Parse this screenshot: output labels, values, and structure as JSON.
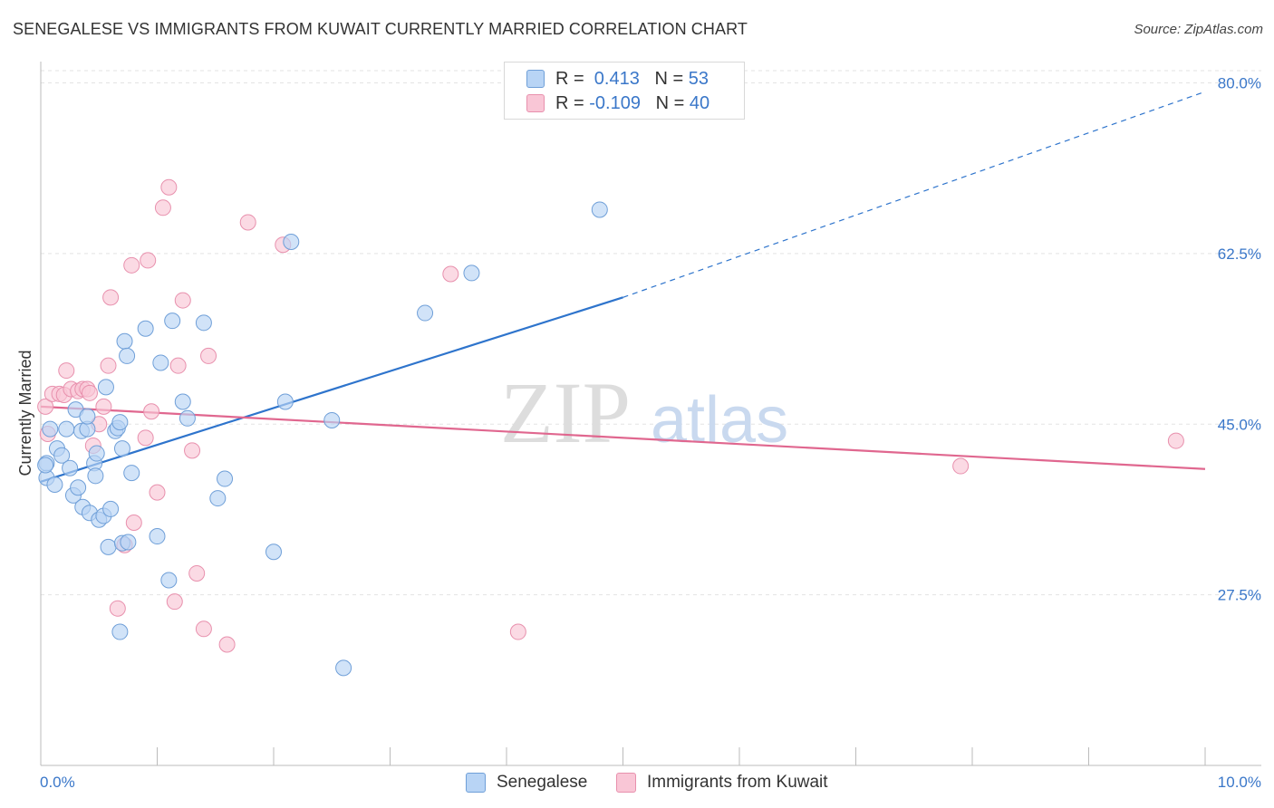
{
  "title": "SENEGALESE VS IMMIGRANTS FROM KUWAIT CURRENTLY MARRIED CORRELATION CHART",
  "source": "Source: ZipAtlas.com",
  "watermark": {
    "zip": "ZIP",
    "atlas": "atlas"
  },
  "legend": {
    "rows": [
      {
        "r_label": "R = ",
        "r_value": " 0.413",
        "n_label": "N = ",
        "n_value": "53"
      },
      {
        "r_label": "R = ",
        "r_value": "-0.109",
        "n_label": "N = ",
        "n_value": "40"
      }
    ]
  },
  "series_labels": {
    "senegalese": "Senegalese",
    "kuwait": "Immigrants from Kuwait"
  },
  "colors": {
    "blue_fill": "#b8d4f5",
    "blue_stroke": "#6f9fd8",
    "blue_line": "#2e74cc",
    "pink_fill": "#f9c6d6",
    "pink_stroke": "#e890ad",
    "pink_line": "#e0678f",
    "axis_text": "#3a77c9",
    "grid": "#e3e3e3"
  },
  "chart_data": {
    "type": "scatter",
    "title": "SENEGALESE VS IMMIGRANTS FROM KUWAIT CURRENTLY MARRIED CORRELATION CHART",
    "xlabel": "",
    "ylabel": "Currently Married",
    "xlim": [
      0,
      10
    ],
    "ylim": [
      10,
      82
    ],
    "x_tick_labels": [
      "0.0%",
      "10.0%"
    ],
    "y_ticks": [
      27.5,
      45.0,
      62.5,
      80.0
    ],
    "y_tick_labels": [
      "27.5%",
      "45.0%",
      "62.5%",
      "80.0%"
    ],
    "grid": true,
    "series": [
      {
        "name": "Senegalese",
        "R": 0.413,
        "N": 53,
        "trend": {
          "x0": 0,
          "y0": 39.1,
          "x1": 5.0,
          "y1": 58.0,
          "dash_x1": 10,
          "dash_y1": 79.1
        },
        "points": [
          [
            0.05,
            39.5
          ],
          [
            0.05,
            41.0
          ],
          [
            0.08,
            44.5
          ],
          [
            0.12,
            38.8
          ],
          [
            0.14,
            42.5
          ],
          [
            0.18,
            41.8
          ],
          [
            0.22,
            44.5
          ],
          [
            0.25,
            40.5
          ],
          [
            0.28,
            37.7
          ],
          [
            0.3,
            46.5
          ],
          [
            0.32,
            38.5
          ],
          [
            0.35,
            44.3
          ],
          [
            0.36,
            36.5
          ],
          [
            0.4,
            44.5
          ],
          [
            0.4,
            45.8
          ],
          [
            0.42,
            35.9
          ],
          [
            0.46,
            41.0
          ],
          [
            0.47,
            39.7
          ],
          [
            0.48,
            42.0
          ],
          [
            0.5,
            35.2
          ],
          [
            0.54,
            35.6
          ],
          [
            0.56,
            48.8
          ],
          [
            0.58,
            32.4
          ],
          [
            0.6,
            36.3
          ],
          [
            0.64,
            44.3
          ],
          [
            0.66,
            44.6
          ],
          [
            0.68,
            45.2
          ],
          [
            0.7,
            42.5
          ],
          [
            0.7,
            32.8
          ],
          [
            0.72,
            53.5
          ],
          [
            0.74,
            52.0
          ],
          [
            0.75,
            32.9
          ],
          [
            0.78,
            40.0
          ],
          [
            0.9,
            54.8
          ],
          [
            1.0,
            33.5
          ],
          [
            1.03,
            51.3
          ],
          [
            1.1,
            29.0
          ],
          [
            1.13,
            55.6
          ],
          [
            1.22,
            47.3
          ],
          [
            1.26,
            45.6
          ],
          [
            1.4,
            55.4
          ],
          [
            1.52,
            37.4
          ],
          [
            1.58,
            39.4
          ],
          [
            2.0,
            31.9
          ],
          [
            2.1,
            47.3
          ],
          [
            2.15,
            63.7
          ],
          [
            2.5,
            45.4
          ],
          [
            2.6,
            20.0
          ],
          [
            3.3,
            56.4
          ],
          [
            3.7,
            60.5
          ],
          [
            4.8,
            67.0
          ],
          [
            0.68,
            23.7
          ],
          [
            0.04,
            40.8
          ]
        ]
      },
      {
        "name": "Immigrants from Kuwait",
        "R": -0.109,
        "N": 40,
        "trend": {
          "x0": 0,
          "y0": 46.8,
          "x1": 10,
          "y1": 40.4
        },
        "points": [
          [
            0.04,
            46.8
          ],
          [
            0.06,
            44.0
          ],
          [
            0.1,
            48.1
          ],
          [
            0.16,
            48.1
          ],
          [
            0.2,
            48.0
          ],
          [
            0.22,
            50.5
          ],
          [
            0.26,
            48.6
          ],
          [
            0.32,
            48.4
          ],
          [
            0.36,
            48.6
          ],
          [
            0.4,
            48.6
          ],
          [
            0.42,
            48.2
          ],
          [
            0.45,
            42.8
          ],
          [
            0.5,
            45.0
          ],
          [
            0.54,
            46.8
          ],
          [
            0.58,
            51.0
          ],
          [
            0.6,
            58.0
          ],
          [
            0.66,
            26.1
          ],
          [
            0.72,
            32.6
          ],
          [
            0.78,
            61.3
          ],
          [
            0.8,
            34.9
          ],
          [
            0.9,
            43.6
          ],
          [
            0.92,
            61.8
          ],
          [
            0.95,
            46.3
          ],
          [
            1.0,
            38.0
          ],
          [
            1.05,
            67.2
          ],
          [
            1.1,
            69.3
          ],
          [
            1.15,
            26.8
          ],
          [
            1.18,
            51.0
          ],
          [
            1.22,
            57.7
          ],
          [
            1.3,
            42.3
          ],
          [
            1.34,
            29.7
          ],
          [
            1.4,
            24.0
          ],
          [
            1.44,
            52.0
          ],
          [
            1.6,
            22.4
          ],
          [
            1.78,
            65.7
          ],
          [
            2.08,
            63.4
          ],
          [
            3.52,
            60.4
          ],
          [
            4.1,
            23.7
          ],
          [
            7.9,
            40.7
          ],
          [
            9.75,
            43.3
          ]
        ]
      }
    ]
  }
}
